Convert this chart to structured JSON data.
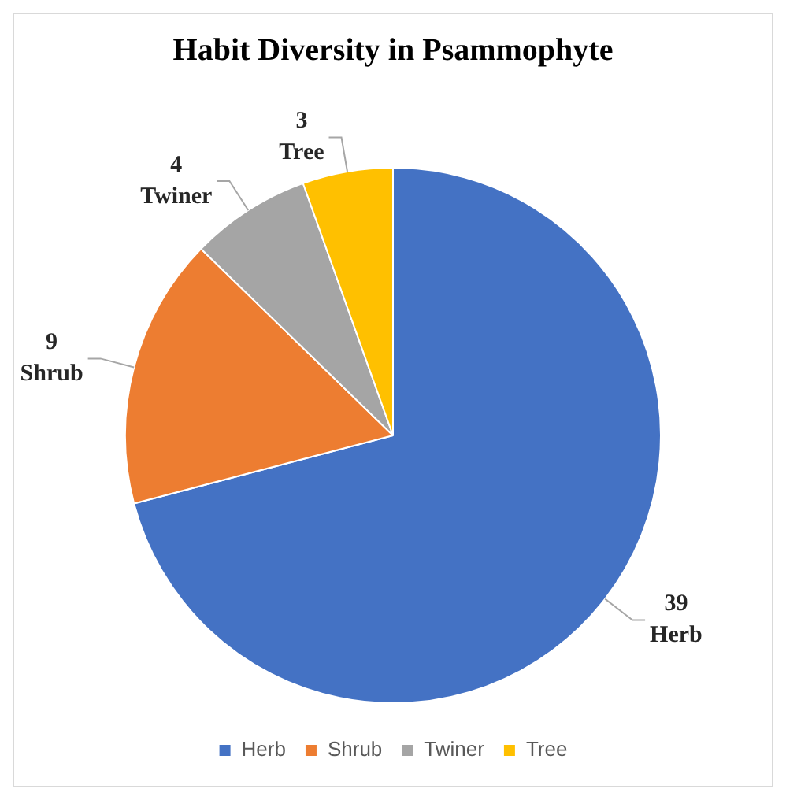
{
  "chart_data": {
    "type": "pie",
    "title": "Habit Diversity in Psammophyte",
    "categories": [
      "Herb",
      "Shrub",
      "Twiner",
      "Tree"
    ],
    "values": [
      39,
      9,
      4,
      3
    ],
    "colors": [
      "#4472c4",
      "#ed7d31",
      "#a5a5a5",
      "#ffc000"
    ],
    "data_labels": true,
    "legend": "bottom"
  }
}
